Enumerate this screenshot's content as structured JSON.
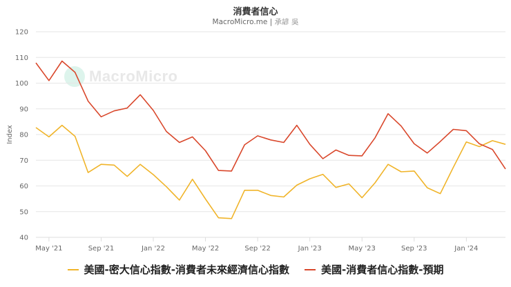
{
  "header": {
    "title": "消費者信心",
    "source": "MacroMicro.me",
    "separator": "|",
    "author": "承諺 吳"
  },
  "watermark": "MacroMicro",
  "colors": {
    "series_yellow": "#f0b429",
    "series_red": "#d9472b",
    "grid": "#e6e6e6"
  },
  "chart_data": {
    "type": "line",
    "title": "消費者信心",
    "subtitle": "MacroMicro.me | 承諺 吳",
    "xlabel": "",
    "ylabel": "Index",
    "ylim": [
      40,
      120
    ],
    "yticks": [
      40,
      50,
      60,
      70,
      80,
      90,
      100,
      110,
      120
    ],
    "xtick_labels": [
      "May '21",
      "Sep '21",
      "Jan '22",
      "May '22",
      "Sep '22",
      "Jan '23",
      "May '23",
      "Sep '23",
      "Jan '24"
    ],
    "grid": true,
    "legend_position": "bottom",
    "x": [
      "2021-04",
      "2021-05",
      "2021-06",
      "2021-07",
      "2021-08",
      "2021-09",
      "2021-10",
      "2021-11",
      "2021-12",
      "2022-01",
      "2022-02",
      "2022-03",
      "2022-04",
      "2022-05",
      "2022-06",
      "2022-07",
      "2022-08",
      "2022-09",
      "2022-10",
      "2022-11",
      "2022-12",
      "2023-01",
      "2023-02",
      "2023-03",
      "2023-04",
      "2023-05",
      "2023-06",
      "2023-07",
      "2023-08",
      "2023-09",
      "2023-10",
      "2023-11",
      "2023-12",
      "2024-01",
      "2024-02",
      "2024-03",
      "2024-04"
    ],
    "series": [
      {
        "name": "美國-密大信心指數-消費者未來經濟信心指數",
        "color": "#f0b429",
        "values": [
          82.7,
          79.1,
          83.6,
          79.3,
          65.2,
          68.4,
          68.1,
          63.7,
          68.4,
          64.4,
          59.7,
          54.5,
          62.6,
          54.9,
          47.6,
          47.3,
          58.3,
          58.3,
          56.3,
          55.7,
          60.3,
          62.8,
          64.5,
          59.4,
          60.8,
          55.4,
          61.2,
          68.4,
          65.5,
          65.8,
          59.3,
          57.0,
          67.2,
          77.1,
          75.3,
          77.6,
          76.2
        ]
      },
      {
        "name": "美國-消費者信心指數-預期",
        "color": "#d9472b",
        "values": [
          107.9,
          101.0,
          108.6,
          104.2,
          93.0,
          86.9,
          89.2,
          90.3,
          95.5,
          89.4,
          81.2,
          76.9,
          79.1,
          73.7,
          66.0,
          65.8,
          76.0,
          79.5,
          77.9,
          76.9,
          83.6,
          76.2,
          70.6,
          74.0,
          71.9,
          71.7,
          78.7,
          88.1,
          83.3,
          76.4,
          72.8,
          77.3,
          82.0,
          81.5,
          76.4,
          74.2,
          66.6
        ]
      }
    ]
  }
}
